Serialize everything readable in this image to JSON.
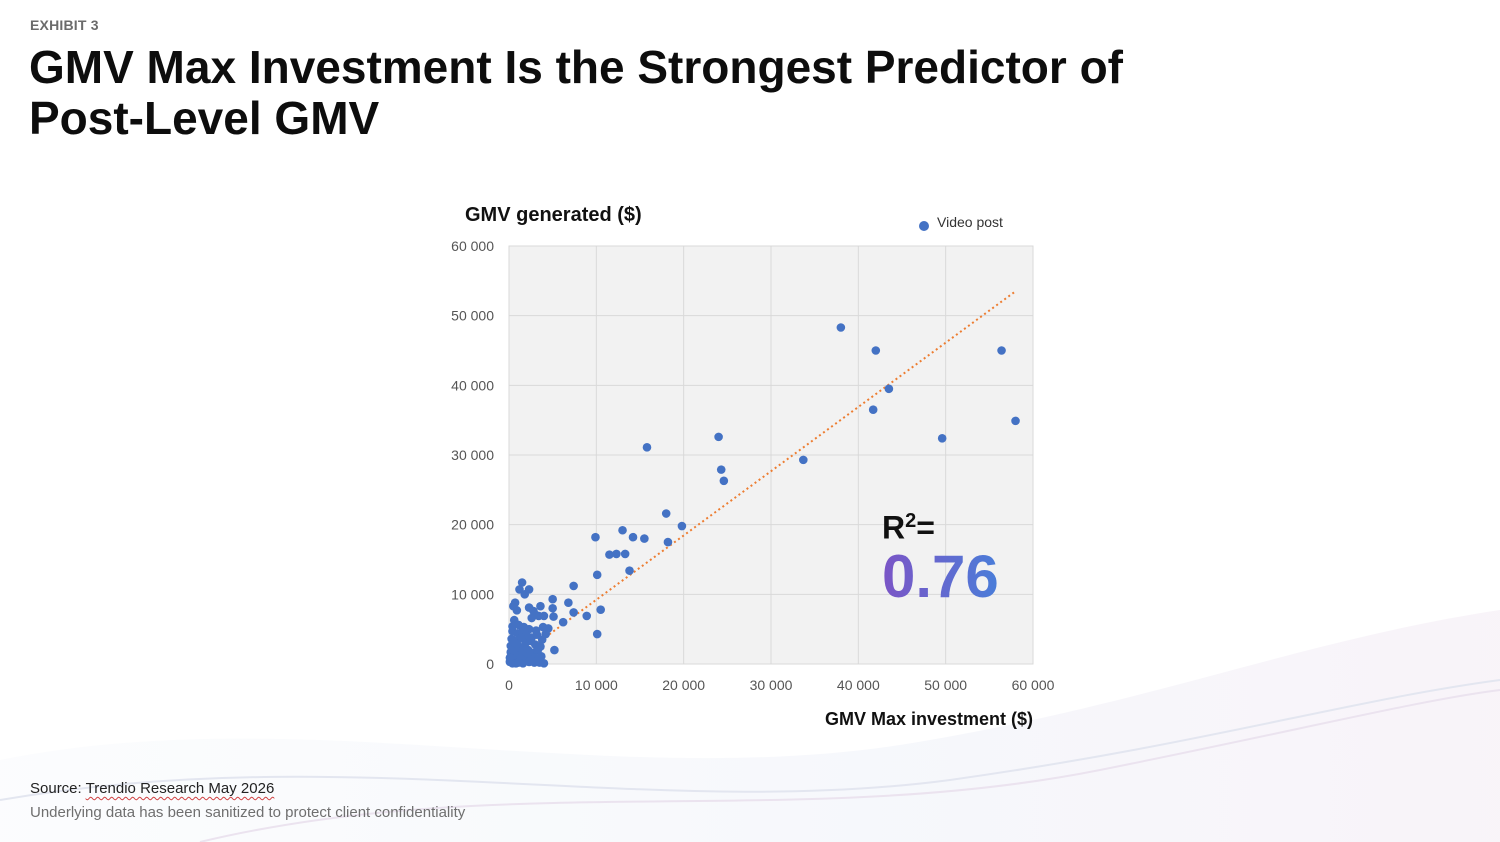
{
  "header": {
    "exhibit": "EXHIBIT 3",
    "title": "GMV Max Investment Is the Strongest Predictor of Post-Level GMV"
  },
  "annotation": {
    "r2_label": "R",
    "r2_sup": "2",
    "r2_eq": "=",
    "r2_value": "0.76"
  },
  "footer": {
    "source_prefix": "Source: ",
    "source_text": "Trendio Research May 2026",
    "note": "Underlying data has been sanitized to protect client confidentiality"
  },
  "colors": {
    "points": "#4472c4",
    "trendline": "#ed7d31",
    "plot_bg": "#f2f2f2",
    "grid": "#d9d9d9"
  },
  "chart_data": {
    "type": "scatter",
    "title": "",
    "ylabel": "GMV generated ($)",
    "xlabel": "GMV Max investment ($)",
    "legend": {
      "label": "Video post",
      "placement": "top-right"
    },
    "xlim": [
      0,
      60000
    ],
    "ylim": [
      0,
      60000
    ],
    "xticks": [
      0,
      10000,
      20000,
      30000,
      40000,
      50000,
      60000
    ],
    "yticks": [
      0,
      10000,
      20000,
      30000,
      40000,
      50000,
      60000
    ],
    "xtick_labels": [
      "0",
      "10 000",
      "20 000",
      "30 000",
      "40 000",
      "50 000",
      "60 000"
    ],
    "ytick_labels": [
      "0",
      "10 000",
      "20 000",
      "30 000",
      "40 000",
      "50 000",
      "60 000"
    ],
    "grid": true,
    "trendline": {
      "style": "dotted",
      "from": [
        0,
        0
      ],
      "to": [
        58000,
        53500
      ]
    },
    "series": [
      {
        "name": "Video post",
        "points": [
          [
            38000,
            48300
          ],
          [
            42000,
            45000
          ],
          [
            56400,
            45000
          ],
          [
            43500,
            39500
          ],
          [
            41700,
            36500
          ],
          [
            58000,
            34900
          ],
          [
            49600,
            32400
          ],
          [
            33700,
            29300
          ],
          [
            24000,
            32600
          ],
          [
            24300,
            27900
          ],
          [
            24600,
            26300
          ],
          [
            15800,
            31100
          ],
          [
            18000,
            21600
          ],
          [
            19800,
            19800
          ],
          [
            18200,
            17500
          ],
          [
            13000,
            19200
          ],
          [
            14200,
            18200
          ],
          [
            15500,
            18000
          ],
          [
            9900,
            18200
          ],
          [
            11500,
            15700
          ],
          [
            12300,
            15800
          ],
          [
            13300,
            15800
          ],
          [
            13800,
            13400
          ],
          [
            10100,
            12800
          ],
          [
            7400,
            11200
          ],
          [
            10500,
            7800
          ],
          [
            10100,
            4300
          ],
          [
            8900,
            6900
          ],
          [
            6800,
            8800
          ],
          [
            7400,
            7400
          ],
          [
            5000,
            9300
          ],
          [
            5000,
            8000
          ],
          [
            5100,
            6800
          ],
          [
            6200,
            6000
          ],
          [
            5200,
            2000
          ],
          [
            1500,
            11700
          ],
          [
            1200,
            10700
          ],
          [
            1800,
            10000
          ],
          [
            2300,
            10700
          ],
          [
            700,
            8800
          ],
          [
            500,
            8300
          ],
          [
            900,
            7700
          ],
          [
            2300,
            8100
          ],
          [
            2800,
            7600
          ],
          [
            3600,
            8300
          ],
          [
            3000,
            7100
          ],
          [
            2600,
            6600
          ],
          [
            3400,
            6900
          ],
          [
            4000,
            6900
          ],
          [
            600,
            6300
          ],
          [
            1100,
            5600
          ],
          [
            1700,
            5300
          ],
          [
            2300,
            5000
          ],
          [
            3100,
            4800
          ],
          [
            3900,
            5300
          ],
          [
            4500,
            5100
          ],
          [
            400,
            4700
          ],
          [
            1000,
            4400
          ],
          [
            1500,
            4600
          ],
          [
            2000,
            4100
          ],
          [
            2600,
            3800
          ],
          [
            3200,
            4200
          ],
          [
            3800,
            3500
          ],
          [
            4200,
            4300
          ],
          [
            300,
            3600
          ],
          [
            900,
            3300
          ],
          [
            1400,
            3700
          ],
          [
            1900,
            3000
          ],
          [
            2500,
            3300
          ],
          [
            3000,
            2800
          ],
          [
            3600,
            2500
          ],
          [
            200,
            2600
          ],
          [
            700,
            2300
          ],
          [
            1200,
            2000
          ],
          [
            1700,
            2500
          ],
          [
            2200,
            2000
          ],
          [
            2800,
            1600
          ],
          [
            3300,
            2000
          ],
          [
            200,
            1700
          ],
          [
            600,
            1400
          ],
          [
            1000,
            1200
          ],
          [
            1500,
            1500
          ],
          [
            2000,
            1000
          ],
          [
            2400,
            1300
          ],
          [
            3000,
            900
          ],
          [
            100,
            900
          ],
          [
            500,
            700
          ],
          [
            900,
            500
          ],
          [
            1300,
            800
          ],
          [
            1800,
            400
          ],
          [
            2300,
            300
          ],
          [
            2900,
            200
          ],
          [
            3500,
            200
          ],
          [
            4000,
            100
          ],
          [
            100,
            300
          ],
          [
            400,
            100
          ],
          [
            800,
            100
          ],
          [
            1600,
            100
          ],
          [
            1100,
            200
          ],
          [
            2600,
            500
          ],
          [
            3300,
            600
          ],
          [
            3700,
            1100
          ],
          [
            500,
            2000
          ],
          [
            900,
            2900
          ],
          [
            400,
            5400
          ]
        ]
      }
    ]
  }
}
